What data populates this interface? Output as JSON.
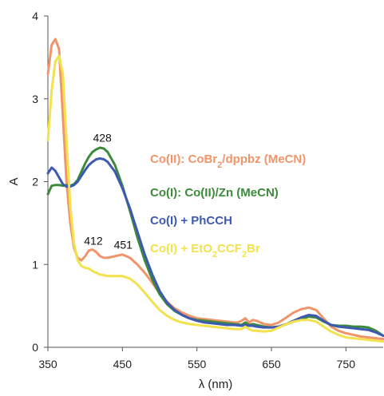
{
  "chart_data": {
    "type": "line",
    "title": "",
    "xlabel": "λ (nm)",
    "ylabel": "A",
    "xlim": [
      350,
      800
    ],
    "ylim": [
      0,
      4
    ],
    "xticks": [
      350,
      450,
      550,
      650,
      750
    ],
    "yticks": [
      0,
      1,
      2,
      3,
      4
    ],
    "grid": false,
    "legend_position": "right",
    "annotations": [
      {
        "text": "428",
        "x": 423,
        "y": 2.48
      },
      {
        "text": "412",
        "x": 411,
        "y": 1.24
      },
      {
        "text": "451",
        "x": 451,
        "y": 1.19
      }
    ],
    "series": [
      {
        "name": "Co(II): CoBr2/dppbz (MeCN)",
        "legend": {
          "prefix": "Co(II):  CoBr",
          "sub": "2",
          "suffix": "/dppbz (MeCN)"
        },
        "color": "#f0956a",
        "x": [
          350,
          355,
          360,
          365,
          370,
          375,
          380,
          385,
          390,
          395,
          400,
          405,
          410,
          415,
          420,
          425,
          430,
          440,
          450,
          460,
          470,
          480,
          490,
          500,
          510,
          520,
          530,
          540,
          550,
          560,
          570,
          580,
          590,
          600,
          605,
          610,
          615,
          620,
          625,
          630,
          640,
          650,
          660,
          670,
          680,
          690,
          700,
          710,
          720,
          730,
          740,
          750,
          760,
          770,
          780,
          790,
          800
        ],
        "y": [
          3.3,
          3.65,
          3.72,
          3.6,
          2.8,
          2.0,
          1.5,
          1.2,
          1.08,
          1.05,
          1.1,
          1.17,
          1.18,
          1.15,
          1.1,
          1.08,
          1.08,
          1.1,
          1.12,
          1.08,
          1.0,
          0.9,
          0.78,
          0.65,
          0.55,
          0.47,
          0.42,
          0.38,
          0.35,
          0.34,
          0.33,
          0.32,
          0.31,
          0.3,
          0.3,
          0.32,
          0.35,
          0.3,
          0.33,
          0.32,
          0.28,
          0.27,
          0.3,
          0.36,
          0.42,
          0.46,
          0.48,
          0.45,
          0.35,
          0.25,
          0.2,
          0.17,
          0.15,
          0.13,
          0.12,
          0.11,
          0.1
        ]
      },
      {
        "name": "Co(I): Co(II)/Zn (MeCN)",
        "legend": {
          "prefix": "Co(I):    Co(II)/Zn (MeCN)",
          "sub": "",
          "suffix": ""
        },
        "color": "#3d8a3b",
        "x": [
          350,
          355,
          360,
          365,
          370,
          375,
          380,
          385,
          390,
          395,
          400,
          405,
          410,
          415,
          420,
          425,
          430,
          440,
          450,
          460,
          470,
          480,
          490,
          500,
          510,
          520,
          530,
          540,
          550,
          560,
          570,
          580,
          590,
          600,
          610,
          615,
          620,
          625,
          630,
          640,
          650,
          660,
          670,
          680,
          690,
          700,
          710,
          720,
          730,
          740,
          750,
          760,
          770,
          780,
          790,
          800
        ],
        "y": [
          1.85,
          1.95,
          1.96,
          1.96,
          1.95,
          1.96,
          1.95,
          1.97,
          2.02,
          2.12,
          2.22,
          2.3,
          2.36,
          2.39,
          2.41,
          2.4,
          2.36,
          2.2,
          1.95,
          1.65,
          1.33,
          1.05,
          0.82,
          0.64,
          0.52,
          0.44,
          0.39,
          0.35,
          0.33,
          0.32,
          0.31,
          0.3,
          0.29,
          0.28,
          0.27,
          0.3,
          0.27,
          0.28,
          0.27,
          0.25,
          0.24,
          0.25,
          0.28,
          0.31,
          0.34,
          0.37,
          0.36,
          0.31,
          0.27,
          0.26,
          0.26,
          0.25,
          0.25,
          0.24,
          0.2,
          0.14
        ]
      },
      {
        "name": "Co(I) + PhCCH",
        "legend": {
          "prefix": "Co(I) + PhCCH",
          "sub": "",
          "suffix": ""
        },
        "color": "#3d5ab0",
        "x": [
          350,
          355,
          360,
          365,
          370,
          375,
          380,
          385,
          390,
          395,
          400,
          405,
          410,
          415,
          420,
          425,
          430,
          440,
          450,
          460,
          470,
          480,
          490,
          500,
          510,
          520,
          530,
          540,
          550,
          560,
          570,
          580,
          590,
          600,
          610,
          615,
          620,
          625,
          630,
          640,
          650,
          660,
          670,
          680,
          690,
          700,
          710,
          720,
          730,
          740,
          750,
          760,
          770,
          780,
          790,
          800
        ],
        "y": [
          2.1,
          2.17,
          2.13,
          2.05,
          1.97,
          1.94,
          1.94,
          1.96,
          2.0,
          2.07,
          2.14,
          2.2,
          2.24,
          2.27,
          2.28,
          2.27,
          2.24,
          2.12,
          1.92,
          1.68,
          1.4,
          1.12,
          0.88,
          0.68,
          0.54,
          0.45,
          0.39,
          0.35,
          0.32,
          0.3,
          0.29,
          0.28,
          0.27,
          0.27,
          0.26,
          0.27,
          0.26,
          0.26,
          0.25,
          0.24,
          0.24,
          0.25,
          0.28,
          0.32,
          0.36,
          0.39,
          0.38,
          0.32,
          0.27,
          0.25,
          0.24,
          0.23,
          0.22,
          0.21,
          0.18,
          0.14
        ]
      },
      {
        "name": "Co(I) + EtO2CCF2Br",
        "legend": {
          "prefix": "Co(I) + EtO",
          "sub": "2",
          "suffix": "CCF",
          "sub2": "2",
          "suffix2": "Br"
        },
        "color": "#f2e24d",
        "x": [
          350,
          355,
          360,
          365,
          370,
          375,
          380,
          385,
          390,
          395,
          400,
          405,
          410,
          420,
          430,
          440,
          450,
          460,
          470,
          480,
          490,
          500,
          510,
          520,
          530,
          540,
          550,
          560,
          570,
          580,
          590,
          600,
          610,
          615,
          620,
          625,
          630,
          640,
          650,
          660,
          670,
          680,
          690,
          700,
          710,
          720,
          730,
          740,
          750,
          760,
          770,
          780,
          790,
          800
        ],
        "y": [
          2.5,
          3.1,
          3.45,
          3.52,
          3.3,
          2.5,
          1.7,
          1.25,
          1.05,
          0.98,
          0.96,
          0.95,
          0.92,
          0.88,
          0.86,
          0.86,
          0.86,
          0.83,
          0.76,
          0.66,
          0.55,
          0.45,
          0.38,
          0.33,
          0.3,
          0.28,
          0.27,
          0.26,
          0.25,
          0.24,
          0.23,
          0.22,
          0.22,
          0.25,
          0.22,
          0.2,
          0.2,
          0.19,
          0.2,
          0.24,
          0.28,
          0.31,
          0.33,
          0.33,
          0.31,
          0.25,
          0.19,
          0.15,
          0.12,
          0.11,
          0.1,
          0.09,
          0.08,
          0.07
        ]
      }
    ]
  }
}
